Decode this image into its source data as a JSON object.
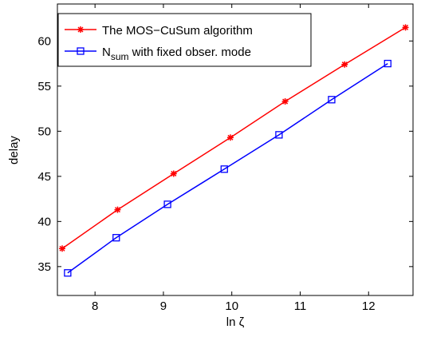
{
  "chart_data": {
    "type": "line",
    "xlabel": "ln ζ",
    "ylabel": "delay",
    "xlim": [
      7.45,
      12.65
    ],
    "ylim": [
      31.8,
      64.1
    ],
    "xticks": [
      8,
      9,
      10,
      11,
      12
    ],
    "yticks": [
      35,
      40,
      45,
      50,
      55,
      60
    ],
    "legend": "upper left",
    "series": [
      {
        "name": "The MOS−CuSum algorithm",
        "color": "#ff0000",
        "marker": "asterisk",
        "x": [
          7.52,
          8.33,
          9.15,
          9.98,
          10.78,
          11.65,
          12.54
        ],
        "values": [
          37.0,
          41.3,
          45.3,
          49.3,
          53.3,
          57.4,
          61.5
        ]
      },
      {
        "name": "Nsum with fixed obser. mode",
        "subscript": "sum",
        "color": "#0000ff",
        "marker": "square",
        "x": [
          7.6,
          8.31,
          9.06,
          9.89,
          10.69,
          11.46,
          12.28
        ],
        "values": [
          34.3,
          38.2,
          41.9,
          45.8,
          49.6,
          53.5,
          57.5
        ]
      }
    ]
  }
}
